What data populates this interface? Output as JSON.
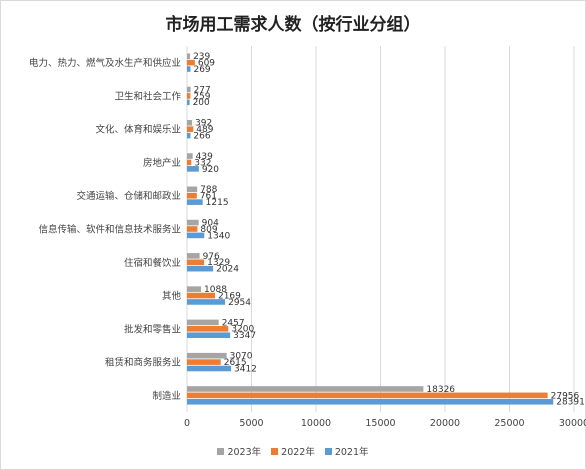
{
  "chart_data": {
    "type": "bar",
    "orientation": "horizontal",
    "title": "市场用工需求人数（按行业分组）",
    "categories": [
      "电力、热力、燃气及水生产和供应业",
      "卫生和社会工作",
      "文化、体育和娱乐业",
      "房地产业",
      "交通运输、仓储和邮政业",
      "信息传输、软件和信息技术服务业",
      "住宿和餐饮业",
      "其他",
      "批发和零售业",
      "租赁和商务服务业",
      "制造业"
    ],
    "series": [
      {
        "name": "2023年",
        "color": "#a5a5a5",
        "values": [
          239,
          277,
          392,
          439,
          788,
          904,
          976,
          1088,
          2457,
          3070,
          18326
        ]
      },
      {
        "name": "2022年",
        "color": "#ed7d31",
        "values": [
          609,
          259,
          489,
          332,
          761,
          809,
          1329,
          2169,
          3200,
          2615,
          27956
        ]
      },
      {
        "name": "2021年",
        "color": "#5b9bd5",
        "values": [
          269,
          200,
          266,
          920,
          1215,
          1340,
          2024,
          2954,
          3347,
          3412,
          28391
        ]
      }
    ],
    "xlim": [
      0,
      30000
    ],
    "xticks": [
      0,
      5000,
      10000,
      15000,
      20000,
      25000,
      30000
    ],
    "grid": true,
    "legend_position": "bottom"
  }
}
